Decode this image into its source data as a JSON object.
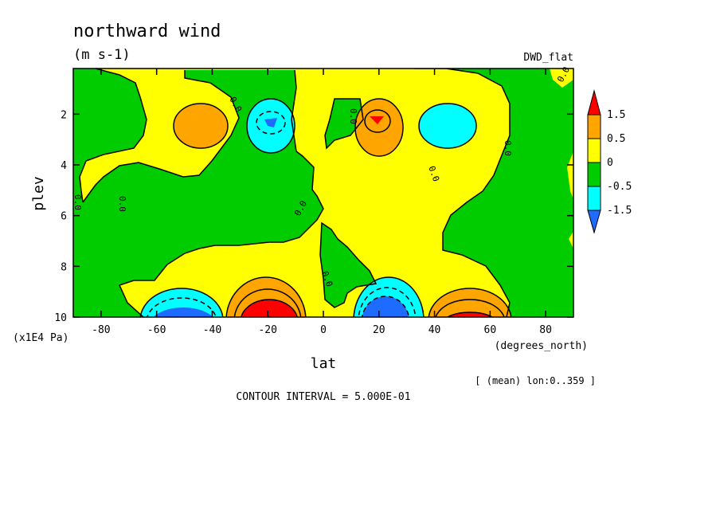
{
  "chart_data": {
    "type": "heatmap",
    "title": "northward wind",
    "units": "(m s-1)",
    "dataset": "DWD_flat",
    "xlabel": "lat",
    "x_units": "(degrees_north)",
    "ylabel": "plev",
    "y_units": "(x1E4 Pa)",
    "xlim": [
      -90,
      90
    ],
    "ylim": [
      10,
      0.2
    ],
    "x_ticks": [
      -80,
      -60,
      -40,
      -20,
      0,
      20,
      40,
      60,
      80
    ],
    "y_ticks": [
      2,
      4,
      6,
      8,
      10
    ],
    "subtitle_note": "[ (mean) lon:0..359 ]",
    "contour_interval": "CONTOUR INTERVAL = 5.000E-01",
    "contour_labels": [
      "0.0",
      "0.0",
      "0.0",
      "0.0",
      "0.0",
      "0.0",
      "0.0",
      "0.0",
      "0.0"
    ],
    "colorbar": {
      "levels": [
        "1.5",
        "0.5",
        "0",
        "-0.5",
        "-1.5"
      ],
      "colors": [
        "#ff0000",
        "#ffa500",
        "#ffff00",
        "#00cc00",
        "#00ffff",
        "#1e6cff"
      ]
    },
    "features": [
      {
        "lat": -48,
        "plev": 2.4,
        "value": 0.7
      },
      {
        "lat": -20,
        "plev": 2.1,
        "value": -0.9
      },
      {
        "lat": 20,
        "plev": 2.1,
        "value": 1.3
      },
      {
        "lat": 45,
        "plev": 2.3,
        "value": -0.7
      },
      {
        "lat": -52,
        "plev": 9.8,
        "value": -1.6
      },
      {
        "lat": -20,
        "plev": 9.8,
        "value": 1.8
      },
      {
        "lat": 20,
        "plev": 9.8,
        "value": -1.8
      },
      {
        "lat": 52,
        "plev": 9.8,
        "value": 1.7
      }
    ]
  }
}
